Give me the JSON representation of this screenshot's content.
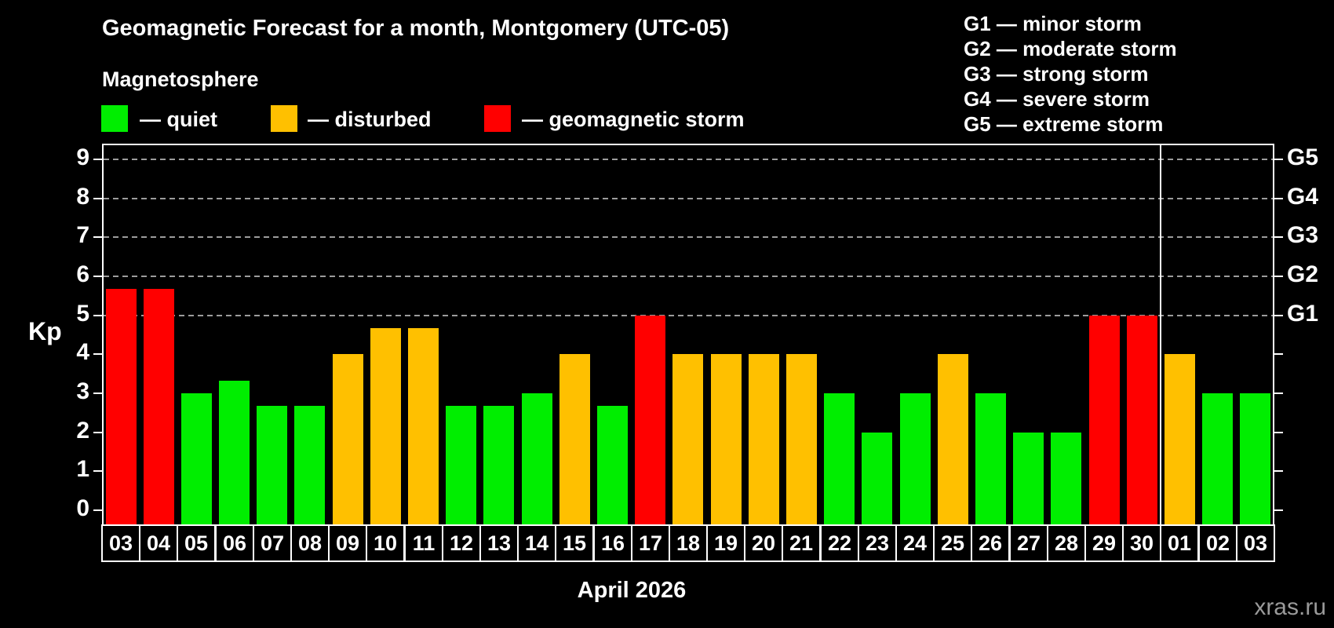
{
  "header": {
    "title": "Geomagnetic Forecast for a month, Montgomery (UTC-05)",
    "subtitle": "Magnetosphere"
  },
  "legend": {
    "quiet_label": "— quiet",
    "disturbed_label": "— disturbed",
    "storm_label": "— geomagnetic storm"
  },
  "g_legend": [
    "G1 — minor storm",
    "G2 — moderate storm",
    "G3 — strong storm",
    "G4 — severe storm",
    "G5 — extreme storm"
  ],
  "palette": {
    "quiet": "#00ee00",
    "disturbed": "#ffc000",
    "storm": "#ff0000",
    "gridline": "#9c9c9c",
    "axis": "#ffffff"
  },
  "chart_data": {
    "type": "bar",
    "title": "Geomagnetic Forecast for a month, Montgomery (UTC-05)",
    "xlabel": "April 2026",
    "ylabel": "Kp",
    "ylim": [
      0,
      9
    ],
    "y_ticks": [
      0,
      1,
      2,
      3,
      4,
      5,
      6,
      7,
      8,
      9
    ],
    "grid": "dashed horizontal lines at Kp 5-9 only",
    "g_levels": [
      {
        "kp": 5,
        "label": "G1"
      },
      {
        "kp": 6,
        "label": "G2"
      },
      {
        "kp": 7,
        "label": "G3"
      },
      {
        "kp": 8,
        "label": "G4"
      },
      {
        "kp": 9,
        "label": "G5"
      }
    ],
    "month_separator_after_index": 27,
    "bars": [
      {
        "date": "03",
        "kp": 5.67,
        "status": "storm"
      },
      {
        "date": "04",
        "kp": 5.67,
        "status": "storm"
      },
      {
        "date": "05",
        "kp": 3.0,
        "status": "quiet"
      },
      {
        "date": "06",
        "kp": 3.33,
        "status": "quiet"
      },
      {
        "date": "07",
        "kp": 2.67,
        "status": "quiet"
      },
      {
        "date": "08",
        "kp": 2.67,
        "status": "quiet"
      },
      {
        "date": "09",
        "kp": 4.0,
        "status": "disturbed"
      },
      {
        "date": "10",
        "kp": 4.67,
        "status": "disturbed"
      },
      {
        "date": "11",
        "kp": 4.67,
        "status": "disturbed"
      },
      {
        "date": "12",
        "kp": 2.67,
        "status": "quiet"
      },
      {
        "date": "13",
        "kp": 2.67,
        "status": "quiet"
      },
      {
        "date": "14",
        "kp": 3.0,
        "status": "quiet"
      },
      {
        "date": "15",
        "kp": 4.0,
        "status": "disturbed"
      },
      {
        "date": "16",
        "kp": 2.67,
        "status": "quiet"
      },
      {
        "date": "17",
        "kp": 5.0,
        "status": "storm"
      },
      {
        "date": "18",
        "kp": 4.0,
        "status": "disturbed"
      },
      {
        "date": "19",
        "kp": 4.0,
        "status": "disturbed"
      },
      {
        "date": "20",
        "kp": 4.0,
        "status": "disturbed"
      },
      {
        "date": "21",
        "kp": 4.0,
        "status": "disturbed"
      },
      {
        "date": "22",
        "kp": 3.0,
        "status": "quiet"
      },
      {
        "date": "23",
        "kp": 2.0,
        "status": "quiet"
      },
      {
        "date": "24",
        "kp": 3.0,
        "status": "quiet"
      },
      {
        "date": "25",
        "kp": 4.0,
        "status": "disturbed"
      },
      {
        "date": "26",
        "kp": 3.0,
        "status": "quiet"
      },
      {
        "date": "27",
        "kp": 2.0,
        "status": "quiet"
      },
      {
        "date": "28",
        "kp": 2.0,
        "status": "quiet"
      },
      {
        "date": "29",
        "kp": 5.0,
        "status": "storm"
      },
      {
        "date": "30",
        "kp": 5.0,
        "status": "storm"
      },
      {
        "date": "01",
        "kp": 4.0,
        "status": "disturbed"
      },
      {
        "date": "02",
        "kp": 3.0,
        "status": "quiet"
      },
      {
        "date": "03",
        "kp": 3.0,
        "status": "quiet"
      }
    ]
  },
  "footer": {
    "month_label": "April 2026",
    "watermark": "xras.ru"
  }
}
